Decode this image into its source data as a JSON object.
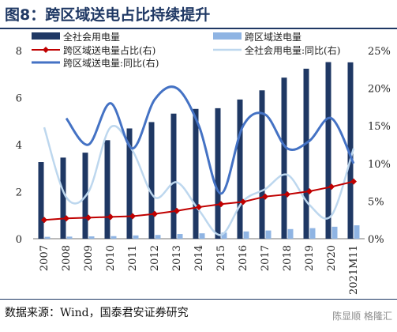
{
  "figure": {
    "title": "图8：跨区域送电占比持续提升",
    "source": "数据来源：Wind，国泰君安证券研究",
    "watermark": "陈显顺 格隆汇"
  },
  "colors": {
    "total_bar": "#1f3864",
    "cross_bar": "#8fb4e3",
    "share_line": "#c00000",
    "total_yoy_line": "#bdd7ee",
    "cross_yoy_line": "#4472c4"
  },
  "chart_data": {
    "type": "bar",
    "categories": [
      "2007",
      "2008",
      "2009",
      "2010",
      "2011",
      "2012",
      "2013",
      "2014",
      "2015",
      "2016",
      "2017",
      "2018",
      "2019",
      "2020",
      "2021M11"
    ],
    "series": [
      {
        "name": "全社会用电量",
        "type": "bar",
        "axis": "left",
        "values": [
          3.26,
          3.45,
          3.66,
          4.19,
          4.69,
          4.96,
          5.32,
          5.52,
          5.55,
          5.92,
          6.31,
          6.85,
          7.23,
          7.51,
          7.5
        ]
      },
      {
        "name": "跨区域送电量",
        "type": "bar",
        "axis": "left",
        "values": [
          0.08,
          0.09,
          0.1,
          0.11,
          0.14,
          0.16,
          0.2,
          0.23,
          0.26,
          0.31,
          0.35,
          0.41,
          0.45,
          0.51,
          0.57
        ]
      },
      {
        "name": "跨区域送电量占比(右)",
        "type": "line",
        "axis": "right",
        "values": [
          2.5,
          2.7,
          2.8,
          2.9,
          3.0,
          3.3,
          3.7,
          4.2,
          4.6,
          4.9,
          5.6,
          5.9,
          6.3,
          6.9,
          7.6
        ]
      },
      {
        "name": "全社会用电量:同比(右)",
        "type": "line",
        "axis": "right",
        "values": [
          14.8,
          5.5,
          6.2,
          14.8,
          11.7,
          5.5,
          7.5,
          3.8,
          0.5,
          5.0,
          6.6,
          8.5,
          4.5,
          3.1,
          12.0
        ]
      },
      {
        "name": "跨区域送电量:同比(右)",
        "type": "line",
        "axis": "right",
        "values": [
          null,
          16.0,
          12.5,
          18.0,
          12.0,
          18.5,
          20.0,
          15.0,
          6.0,
          15.0,
          16.5,
          12.0,
          13.0,
          16.0,
          10.0
        ]
      }
    ],
    "ylim": [
      0,
      8
    ],
    "yticks": [
      "0",
      "2",
      "4",
      "6",
      "8"
    ],
    "y2lim": [
      0,
      25
    ],
    "y2ticks": [
      "0%",
      "5%",
      "10%",
      "15%",
      "20%",
      "25%"
    ],
    "grid": false,
    "legend": "top"
  }
}
